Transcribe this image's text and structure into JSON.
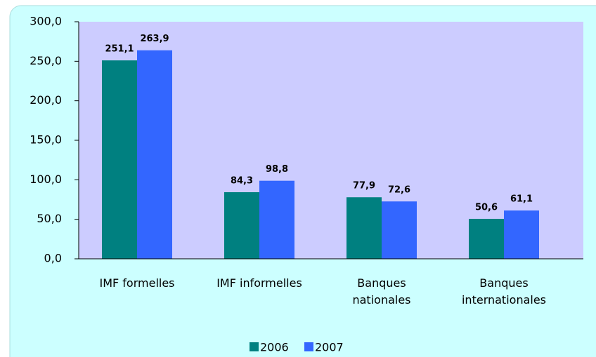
{
  "chart_data": {
    "type": "bar",
    "categories": [
      "IMF formelles",
      "IMF informelles",
      "Banques nationales",
      "Banques internationales"
    ],
    "series": [
      {
        "name": "2006",
        "color": "#008080",
        "values": [
          251.1,
          84.3,
          77.9,
          50.6
        ],
        "value_labels": [
          "251,1",
          "84,3",
          "77,9",
          "50,6"
        ]
      },
      {
        "name": "2007",
        "color": "#3366ff",
        "values": [
          263.9,
          98.8,
          72.6,
          61.1
        ],
        "value_labels": [
          "263,9",
          "98,8",
          "72,6",
          "61,1"
        ]
      }
    ],
    "ylim": [
      0,
      300
    ],
    "yticks": [
      {
        "value": 0,
        "label": "0,0"
      },
      {
        "value": 50,
        "label": "50,0"
      },
      {
        "value": 100,
        "label": "100,0"
      },
      {
        "value": 150,
        "label": "150,0"
      },
      {
        "value": 200,
        "label": "200,0"
      },
      {
        "value": 250,
        "label": "250,0"
      },
      {
        "value": 300,
        "label": "300,0"
      }
    ],
    "legend": "bottom"
  }
}
